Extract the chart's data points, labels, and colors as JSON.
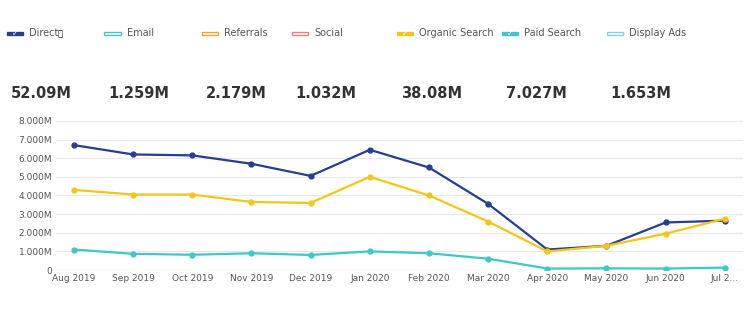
{
  "month_labels": [
    "Aug 2019",
    "Sep 2019",
    "Oct 2019",
    "Nov 2019",
    "Dec 2019",
    "Jan 2020",
    "Feb 2020",
    "Mar 2020",
    "Apr 2020",
    "May 2020",
    "Jun 2020",
    "Jul 2..."
  ],
  "series": {
    "Direct": {
      "color": "#253f8f",
      "values": [
        6700000,
        6200000,
        6150000,
        5700000,
        5050000,
        6450000,
        5500000,
        3550000,
        1100000,
        1300000,
        2550000,
        2650000
      ]
    },
    "Organic Search": {
      "color": "#f5c518",
      "values": [
        4300000,
        4050000,
        4050000,
        3650000,
        3600000,
        5000000,
        4000000,
        2600000,
        1000000,
        1300000,
        1950000,
        2750000
      ]
    },
    "Paid Search": {
      "color": "#3ec8c8",
      "values": [
        1100000,
        870000,
        820000,
        900000,
        810000,
        1000000,
        900000,
        610000,
        80000,
        90000,
        80000,
        130000
      ]
    }
  },
  "legend_items": [
    {
      "label": "Direct",
      "color": "#253f8f",
      "checked": true,
      "icon_color": "#253f8f"
    },
    {
      "label": "Email",
      "color": "#3ec8c8",
      "checked": false,
      "icon_color": "#3ec8c8"
    },
    {
      "label": "Referrals",
      "color": "#f5a623",
      "checked": false,
      "icon_color": "#f5a623"
    },
    {
      "label": "Social",
      "color": "#f08080",
      "checked": false,
      "icon_color": "#f08080"
    },
    {
      "label": "Organic Search",
      "color": "#f5c518",
      "checked": true,
      "icon_color": "#f5c518"
    },
    {
      "label": "Paid Search",
      "color": "#3ec8c8",
      "checked": true,
      "icon_color": "#3ec8c8"
    },
    {
      "label": "Display Ads",
      "color": "#87ceeb",
      "checked": false,
      "icon_color": "#87ceeb"
    }
  ],
  "totals": [
    "52.09M",
    "1.259M",
    "2.179M",
    "1.032M",
    "38.08M",
    "7.027M",
    "1.653M"
  ],
  "ylim": [
    0,
    8000000
  ],
  "ytick_vals": [
    0,
    1000000,
    2000000,
    3000000,
    4000000,
    5000000,
    6000000,
    7000000,
    8000000
  ],
  "ytick_labels": [
    "0",
    "1.000M",
    "2.000M",
    "3.000M",
    "4.000M",
    "5.000M",
    "6.000M",
    "7.000M",
    "8.000M"
  ],
  "background_color": "#ffffff",
  "grid_color": "#e8e8e8",
  "text_color": "#555555",
  "total_color": "#333333"
}
